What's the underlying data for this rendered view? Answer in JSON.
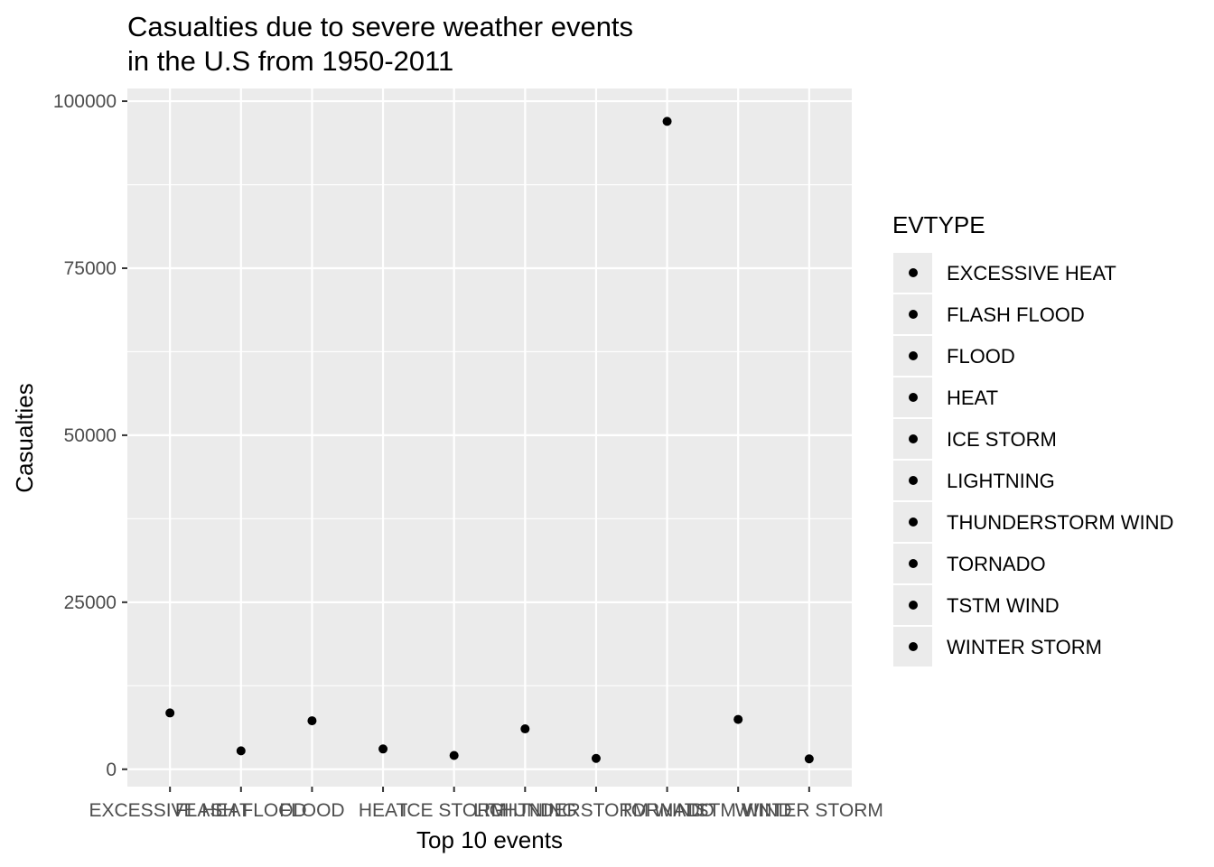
{
  "chart_data": {
    "type": "scatter",
    "title_lines": [
      "Casualties due to severe weather events",
      "in the U.S from 1950-2011"
    ],
    "xlabel": "Top 10 events",
    "ylabel": "Casualties",
    "categories": [
      "EXCESSIVE HEAT",
      "FLASH FLOOD",
      "FLOOD",
      "HEAT",
      "ICE STORM",
      "LIGHTNING",
      "THUNDERSTORM WIND",
      "TORNADO",
      "TSTM WIND",
      "WINTER STORM"
    ],
    "values": [
      8428,
      2755,
      7259,
      3037,
      2064,
      6046,
      1621,
      96979,
      7461,
      1555
    ],
    "ylim": [
      -2600,
      101900
    ],
    "yticks": [
      0,
      25000,
      50000,
      75000,
      100000
    ],
    "ytick_labels": [
      "0",
      "25000",
      "50000",
      "75000",
      "100000"
    ],
    "grid": true,
    "legend": {
      "title": "EVTYPE",
      "position": "right",
      "entries": [
        "EXCESSIVE HEAT",
        "FLASH FLOOD",
        "FLOOD",
        "HEAT",
        "ICE STORM",
        "LIGHTNING",
        "THUNDERSTORM WIND",
        "TORNADO",
        "TSTM WIND",
        "WINTER STORM"
      ]
    },
    "colors": {
      "panel_background": "#ebebeb",
      "grid": "#ffffff",
      "point": "#000000",
      "tick_text": "#4d4d4d",
      "axis_tick": "#333333"
    }
  }
}
